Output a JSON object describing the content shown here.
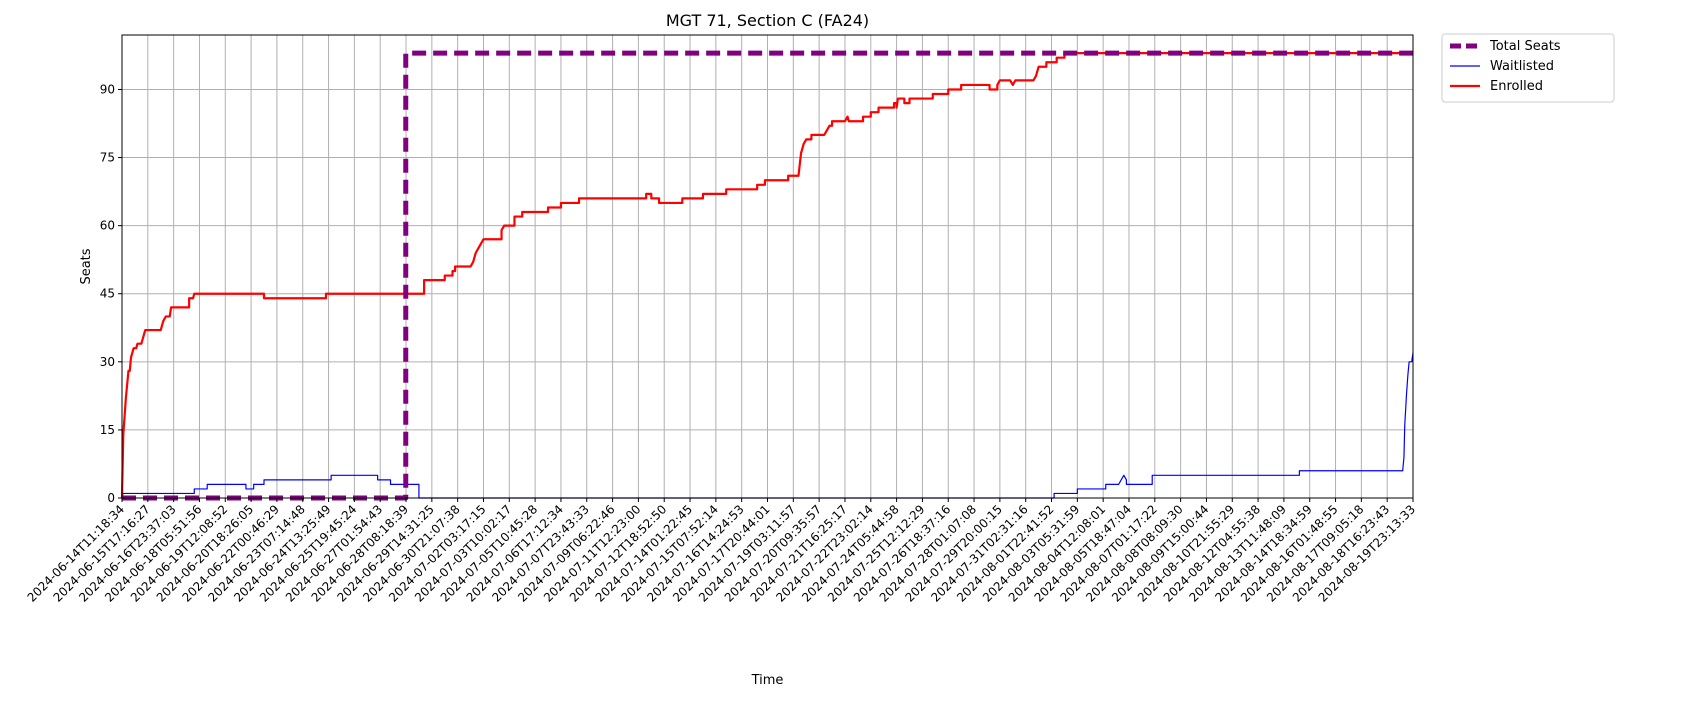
{
  "chart_data": {
    "type": "line",
    "title": "MGT 71, Section C (FA24)",
    "xlabel": "Time",
    "ylabel": "Seats",
    "ylim": [
      0,
      102
    ],
    "yticks": [
      0,
      15,
      30,
      45,
      60,
      75,
      90
    ],
    "grid": true,
    "legend_position": "outside-top-right",
    "x_tick_labels": [
      "2024-06-14T11:18:34",
      "2024-06-15T17:16:27",
      "2024-06-16T23:37:03",
      "2024-06-18T05:51:56",
      "2024-06-19T12:08:52",
      "2024-06-20T18:26:05",
      "2024-06-22T00:46:29",
      "2024-06-23T07:14:48",
      "2024-06-24T13:25:49",
      "2024-06-25T19:45:24",
      "2024-06-27T01:54:43",
      "2024-06-28T08:18:39",
      "2024-06-29T14:31:25",
      "2024-06-30T21:07:38",
      "2024-07-02T03:17:15",
      "2024-07-03T10:02:17",
      "2024-07-05T10:45:28",
      "2024-07-06T17:12:34",
      "2024-07-07T23:43:33",
      "2024-07-09T06:22:46",
      "2024-07-11T12:23:00",
      "2024-07-12T18:52:50",
      "2024-07-14T01:22:45",
      "2024-07-15T07:52:14",
      "2024-07-16T14:24:53",
      "2024-07-17T20:44:01",
      "2024-07-19T03:11:57",
      "2024-07-20T09:35:57",
      "2024-07-21T16:25:17",
      "2024-07-22T23:02:14",
      "2024-07-24T05:44:58",
      "2024-07-25T12:12:29",
      "2024-07-26T18:37:16",
      "2024-07-28T01:07:08",
      "2024-07-29T20:00:15",
      "2024-07-31T02:31:16",
      "2024-08-01T22:41:52",
      "2024-08-03T05:31:59",
      "2024-08-04T12:08:01",
      "2024-08-05T18:47:04",
      "2024-08-07T01:17:22",
      "2024-08-08T08:09:30",
      "2024-08-09T15:00:44",
      "2024-08-10T21:55:29",
      "2024-08-12T04:55:38",
      "2024-08-13T11:48:09",
      "2024-08-14T18:34:59",
      "2024-08-16T01:48:55",
      "2024-08-17T09:05:18",
      "2024-08-18T16:23:43",
      "2024-08-19T23:13:33"
    ],
    "x_index_max": 50,
    "series": [
      {
        "name": "Total Seats",
        "color": "#800080",
        "style": "dashed",
        "points": [
          [
            0,
            0
          ],
          [
            10.99,
            0
          ],
          [
            10.99,
            98
          ],
          [
            11.4,
            98
          ],
          [
            50,
            98
          ]
        ]
      },
      {
        "name": "Waitlisted",
        "color": "#0000ff",
        "style": "solid",
        "points": [
          [
            0,
            0
          ],
          [
            0.03,
            0
          ],
          [
            0.03,
            1
          ],
          [
            2.8,
            1
          ],
          [
            2.8,
            2
          ],
          [
            3.3,
            2
          ],
          [
            3.3,
            3
          ],
          [
            4.8,
            3
          ],
          [
            4.8,
            2
          ],
          [
            5.1,
            2
          ],
          [
            5.1,
            3
          ],
          [
            5.5,
            3
          ],
          [
            5.5,
            4
          ],
          [
            8.1,
            4
          ],
          [
            8.1,
            5
          ],
          [
            9.9,
            5
          ],
          [
            9.9,
            4
          ],
          [
            10.4,
            4
          ],
          [
            10.4,
            3
          ],
          [
            11.5,
            3
          ],
          [
            11.5,
            0
          ],
          [
            36.1,
            0
          ],
          [
            36.1,
            1
          ],
          [
            37.0,
            1
          ],
          [
            37.0,
            2
          ],
          [
            38.1,
            2
          ],
          [
            38.1,
            3
          ],
          [
            38.6,
            3
          ],
          [
            38.7,
            4
          ],
          [
            38.8,
            5
          ],
          [
            38.9,
            4
          ],
          [
            38.9,
            3
          ],
          [
            39.9,
            3
          ],
          [
            39.9,
            5
          ],
          [
            45.6,
            5
          ],
          [
            45.6,
            6
          ],
          [
            49.6,
            6
          ],
          [
            49.65,
            9
          ],
          [
            49.68,
            16
          ],
          [
            49.75,
            23
          ],
          [
            49.8,
            27
          ],
          [
            49.85,
            30
          ],
          [
            49.95,
            30
          ],
          [
            50,
            32
          ]
        ]
      },
      {
        "name": "Enrolled",
        "color": "#ff0000",
        "style": "solid",
        "points": [
          [
            0,
            0
          ],
          [
            0.05,
            14
          ],
          [
            0.1,
            18
          ],
          [
            0.15,
            22
          ],
          [
            0.2,
            25
          ],
          [
            0.25,
            28
          ],
          [
            0.3,
            28
          ],
          [
            0.35,
            31
          ],
          [
            0.4,
            32
          ],
          [
            0.45,
            33
          ],
          [
            0.55,
            33
          ],
          [
            0.6,
            34
          ],
          [
            0.75,
            34
          ],
          [
            0.8,
            35
          ],
          [
            0.9,
            37
          ],
          [
            1.5,
            37
          ],
          [
            1.6,
            39
          ],
          [
            1.7,
            40
          ],
          [
            1.85,
            40
          ],
          [
            1.9,
            42
          ],
          [
            2.6,
            42
          ],
          [
            2.6,
            44
          ],
          [
            2.75,
            44
          ],
          [
            2.8,
            45
          ],
          [
            5.5,
            45
          ],
          [
            5.5,
            44
          ],
          [
            7.9,
            44
          ],
          [
            7.9,
            45
          ],
          [
            11.7,
            45
          ],
          [
            11.7,
            48
          ],
          [
            12.5,
            48
          ],
          [
            12.5,
            49
          ],
          [
            12.8,
            49
          ],
          [
            12.8,
            50
          ],
          [
            12.9,
            50
          ],
          [
            12.9,
            51
          ],
          [
            13.5,
            51
          ],
          [
            13.6,
            52
          ],
          [
            13.7,
            54
          ],
          [
            13.8,
            55
          ],
          [
            13.9,
            56
          ],
          [
            14.0,
            57
          ],
          [
            14.7,
            57
          ],
          [
            14.7,
            59
          ],
          [
            14.8,
            60
          ],
          [
            15.2,
            60
          ],
          [
            15.2,
            62
          ],
          [
            15.5,
            62
          ],
          [
            15.5,
            63
          ],
          [
            16.5,
            63
          ],
          [
            16.5,
            64
          ],
          [
            17.0,
            64
          ],
          [
            17.0,
            65
          ],
          [
            17.7,
            65
          ],
          [
            17.7,
            66
          ],
          [
            20.3,
            66
          ],
          [
            20.3,
            67
          ],
          [
            20.5,
            67
          ],
          [
            20.5,
            66
          ],
          [
            20.8,
            66
          ],
          [
            20.8,
            65
          ],
          [
            21.7,
            65
          ],
          [
            21.7,
            66
          ],
          [
            22.5,
            66
          ],
          [
            22.5,
            67
          ],
          [
            23.4,
            67
          ],
          [
            23.4,
            68
          ],
          [
            24.6,
            68
          ],
          [
            24.6,
            69
          ],
          [
            24.9,
            69
          ],
          [
            24.9,
            70
          ],
          [
            25.8,
            70
          ],
          [
            25.8,
            71
          ],
          [
            26.2,
            71
          ],
          [
            26.3,
            76
          ],
          [
            26.4,
            78
          ],
          [
            26.5,
            79
          ],
          [
            26.7,
            79
          ],
          [
            26.7,
            80
          ],
          [
            27.2,
            80
          ],
          [
            27.3,
            81
          ],
          [
            27.4,
            82
          ],
          [
            27.5,
            82
          ],
          [
            27.5,
            83
          ],
          [
            28.0,
            83
          ],
          [
            28.1,
            84
          ],
          [
            28.15,
            83
          ],
          [
            28.7,
            83
          ],
          [
            28.7,
            84
          ],
          [
            29.0,
            84
          ],
          [
            29.0,
            85
          ],
          [
            29.3,
            85
          ],
          [
            29.3,
            86
          ],
          [
            29.9,
            86
          ],
          [
            29.9,
            87
          ],
          [
            30.0,
            87
          ],
          [
            30.0,
            86
          ],
          [
            30.05,
            88
          ],
          [
            30.3,
            88
          ],
          [
            30.3,
            87
          ],
          [
            30.5,
            87
          ],
          [
            30.5,
            88
          ],
          [
            31.4,
            88
          ],
          [
            31.4,
            89
          ],
          [
            32.0,
            89
          ],
          [
            32.0,
            90
          ],
          [
            32.5,
            90
          ],
          [
            32.5,
            91
          ],
          [
            33.6,
            91
          ],
          [
            33.6,
            90
          ],
          [
            33.9,
            90
          ],
          [
            33.9,
            91
          ],
          [
            34.0,
            92
          ],
          [
            34.4,
            92
          ],
          [
            34.5,
            91
          ],
          [
            34.6,
            92
          ],
          [
            35.3,
            92
          ],
          [
            35.4,
            93
          ],
          [
            35.5,
            95
          ],
          [
            35.8,
            95
          ],
          [
            35.8,
            96
          ],
          [
            36.2,
            96
          ],
          [
            36.2,
            97
          ],
          [
            36.5,
            97
          ],
          [
            36.5,
            98
          ],
          [
            50,
            98
          ]
        ]
      }
    ]
  }
}
